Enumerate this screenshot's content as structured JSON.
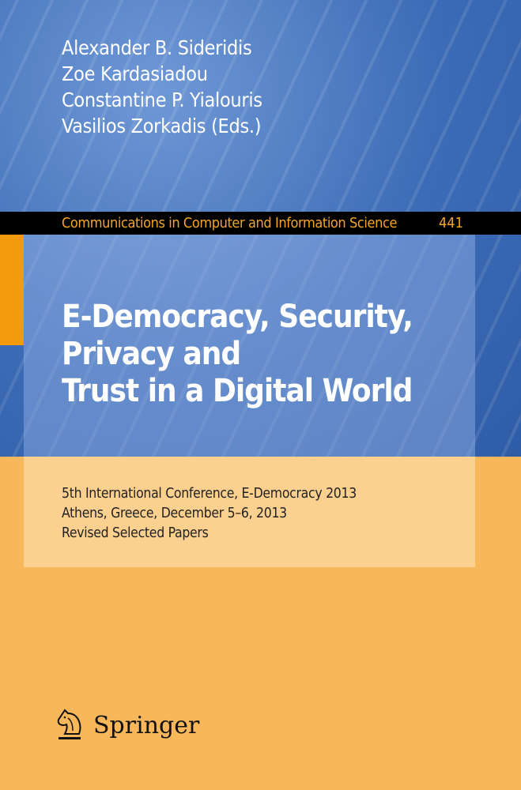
{
  "authors": [
    "Alexander B. Sideridis",
    "Zoe Kardasiadou",
    "Constantine P. Yialouris",
    "Vasilios Zorkadis (Eds.)"
  ],
  "series": {
    "name": "Communications in Computer and Information Science",
    "volume": "441"
  },
  "title": [
    "E-Democracy, Security,",
    "Privacy and",
    "Trust in a Digital World"
  ],
  "subtitle": [
    "5th International Conference, E-Democracy 2013",
    "Athens, Greece, December 5–6, 2013",
    "Revised Selected Papers"
  ],
  "publisher": {
    "name": "Springer",
    "icon": "knight-horse-icon"
  },
  "colors": {
    "blue": "#3d6cb6",
    "orange": "#f9b75c",
    "series_text": "#f4a521",
    "tab": "#f39a0f"
  }
}
